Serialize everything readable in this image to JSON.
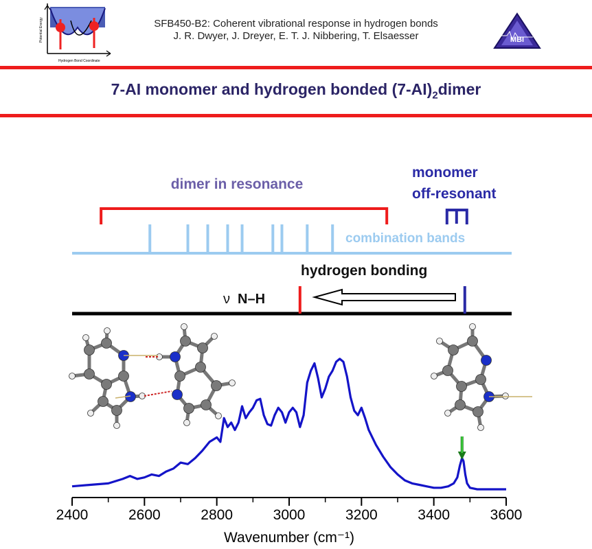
{
  "header": {
    "line1": "SFB450-B2: Coherent vibrational response in hydrogen bonds",
    "line2": "J. R. Dwyer, J. Dreyer, E. T. J. Nibbering, T. Elsaesser",
    "logo_left_ylabel": "Potential Energy",
    "logo_left_xlabel": "Hydrogen Bond Coordinate",
    "logo_right_text": "MBI"
  },
  "title": {
    "part1": "7-AI monomer and  hydrogen bonded (7-AI)",
    "subscript": "2",
    "part2": "dimer"
  },
  "scheme": {
    "dimer_label": "dimer in resonance",
    "monomer_label_1": "monomer",
    "monomer_label_2": "off-resonant",
    "combination_label": "combination bands",
    "hbond_label": "hydrogen bonding",
    "nu_symbol": "ν",
    "nh_label": "N–H",
    "dimer_bracket_range": [
      2480,
      3270
    ],
    "combination_band_positions": [
      2615,
      2720,
      2775,
      2830,
      2870,
      2955,
      2980,
      3050,
      3120
    ],
    "dimer_nh_position": 3030,
    "monomer_nh_position": 3480,
    "colors": {
      "dimer": "#ee1c1c",
      "monomer": "#2a2aa6",
      "combination": "#9ccbf0",
      "dimer_label": "#6b5fa8"
    }
  },
  "molecules": {
    "dimer": "7-azaindole hydrogen-bonded dimer (ball-and-stick)",
    "monomer": "7-azaindole monomer (ball-and-stick)"
  },
  "chart_data": {
    "type": "line",
    "xlabel": "Wavenumber (cm⁻¹)",
    "ylabel": "",
    "xlim": [
      2400,
      3600
    ],
    "x_ticks": [
      2400,
      2600,
      2800,
      3000,
      3200,
      3400,
      3600
    ],
    "series": [
      {
        "color": "#1414c8",
        "x": [
          2400,
          2450,
          2500,
          2540,
          2560,
          2580,
          2600,
          2620,
          2640,
          2660,
          2680,
          2700,
          2720,
          2740,
          2760,
          2780,
          2800,
          2810,
          2820,
          2830,
          2840,
          2850,
          2860,
          2870,
          2880,
          2890,
          2900,
          2910,
          2920,
          2930,
          2940,
          2950,
          2960,
          2970,
          2980,
          2990,
          3000,
          3010,
          3020,
          3030,
          3040,
          3050,
          3060,
          3070,
          3080,
          3090,
          3100,
          3110,
          3120,
          3130,
          3140,
          3150,
          3160,
          3170,
          3180,
          3190,
          3200,
          3210,
          3220,
          3240,
          3260,
          3280,
          3300,
          3320,
          3340,
          3360,
          3380,
          3400,
          3420,
          3440,
          3455,
          3465,
          3472,
          3478,
          3482,
          3487,
          3492,
          3500,
          3520,
          3560,
          3600
        ],
        "y": [
          0.02,
          0.03,
          0.04,
          0.07,
          0.09,
          0.07,
          0.08,
          0.1,
          0.09,
          0.12,
          0.14,
          0.18,
          0.17,
          0.21,
          0.26,
          0.32,
          0.35,
          0.32,
          0.48,
          0.42,
          0.45,
          0.4,
          0.45,
          0.56,
          0.48,
          0.52,
          0.55,
          0.6,
          0.61,
          0.5,
          0.44,
          0.43,
          0.5,
          0.55,
          0.52,
          0.45,
          0.52,
          0.55,
          0.52,
          0.42,
          0.5,
          0.72,
          0.8,
          0.85,
          0.75,
          0.62,
          0.68,
          0.76,
          0.8,
          0.86,
          0.88,
          0.86,
          0.76,
          0.62,
          0.53,
          0.5,
          0.55,
          0.48,
          0.4,
          0.3,
          0.22,
          0.15,
          0.1,
          0.06,
          0.04,
          0.03,
          0.02,
          0.01,
          0.01,
          0.02,
          0.04,
          0.08,
          0.16,
          0.21,
          0.19,
          0.1,
          0.04,
          0.01,
          0.0,
          0.0,
          0.0
        ]
      }
    ],
    "annotation": "green arrow marking monomer N–H peak at ~3478 cm⁻¹"
  }
}
